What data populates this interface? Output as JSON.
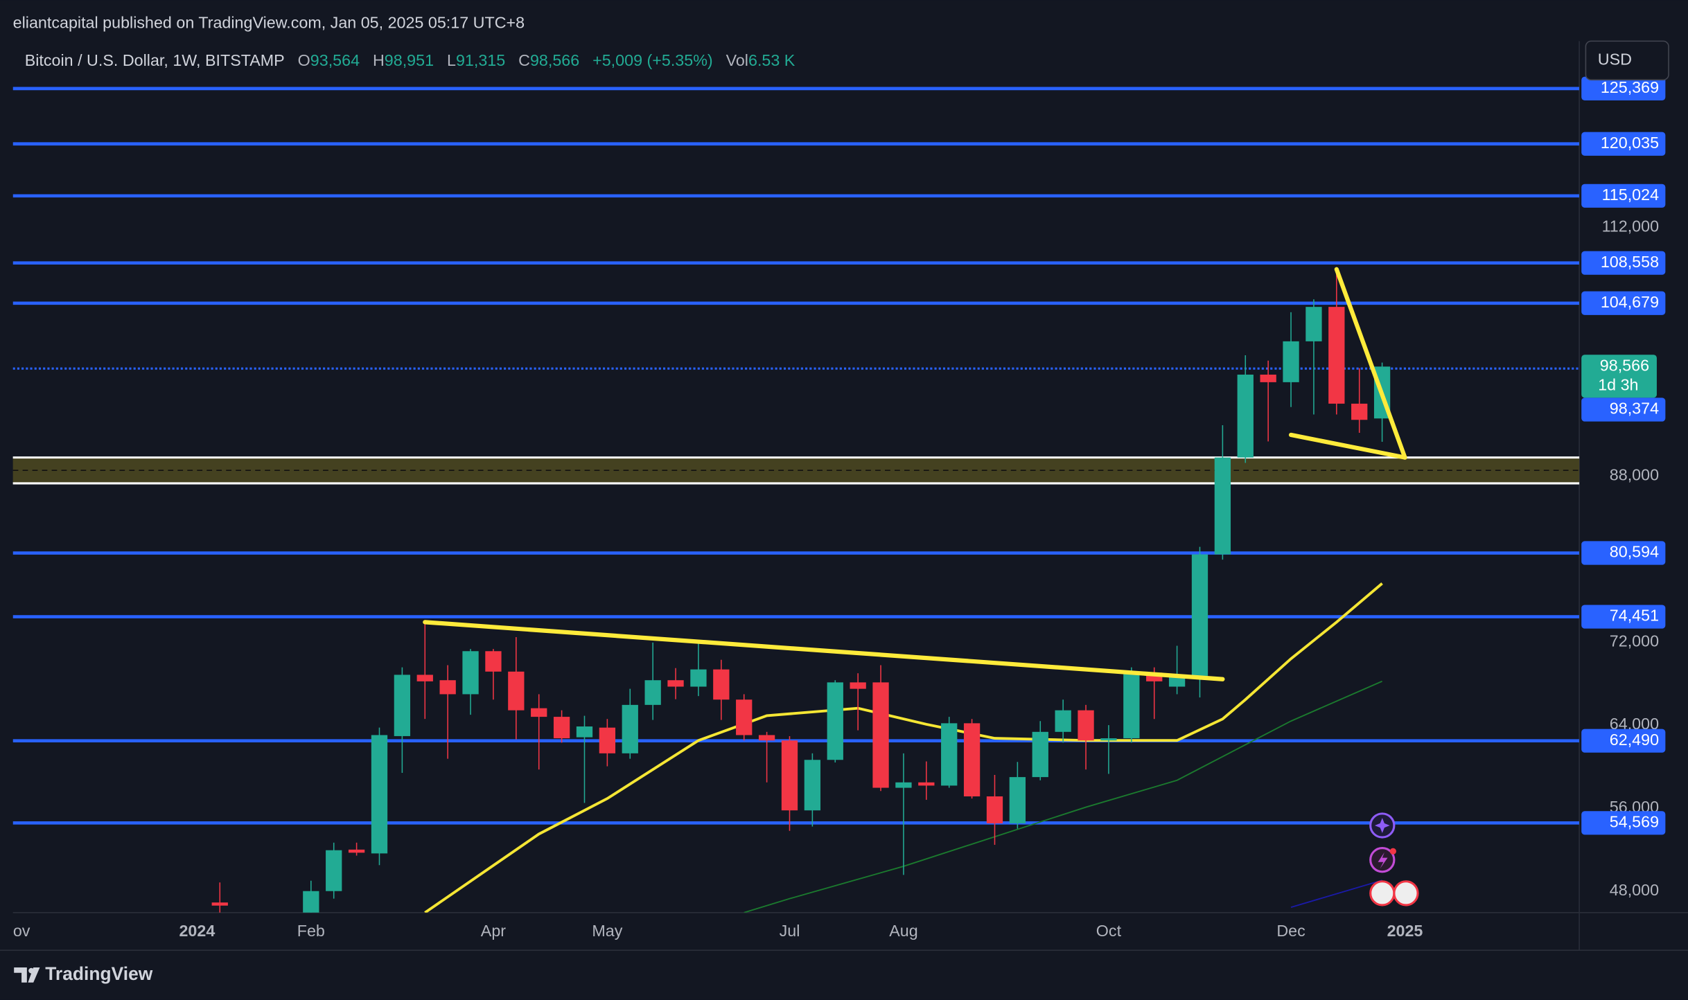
{
  "header": {
    "publisher": "eliantcapital published on TradingView.com, Jan 05, 2025 05:17 UTC+8",
    "symbol": "Bitcoin / U.S. Dollar, 1W, BITSTAMP",
    "legend": [
      [
        "O",
        "93,564"
      ],
      [
        "H",
        "98,951"
      ],
      [
        "L",
        "91,315"
      ],
      [
        "C",
        "98,566"
      ]
    ],
    "change": "+5,009 (+5.35%)",
    "vol_label": "Vol",
    "vol": "6.53 K",
    "currency": "USD",
    "footer": "TradingView"
  },
  "chart_data": {
    "type": "candlestick",
    "up_color": "#22ab94",
    "down_color": "#f23645",
    "x": [
      1,
      5,
      6,
      7,
      8,
      9,
      10,
      11,
      12,
      13,
      14,
      15,
      16,
      17,
      18,
      19,
      20,
      21,
      22,
      23,
      24,
      25,
      26,
      27,
      28,
      29,
      30,
      31,
      32,
      33,
      34,
      35,
      36,
      37,
      38,
      39,
      40,
      41,
      42,
      43,
      44,
      45,
      46,
      47,
      48,
      49,
      50,
      51,
      52
    ],
    "open": [
      46900,
      42600,
      48000,
      52000,
      51630,
      62940,
      68850,
      68330,
      66980,
      71130,
      69160,
      65630,
      64800,
      62830,
      63760,
      61280,
      65950,
      68330,
      67710,
      69370,
      66460,
      63040,
      62520,
      55780,
      60650,
      68120,
      68120,
      57960,
      58480,
      58170,
      64180,
      57130,
      54530,
      58990,
      63350,
      65430,
      62520,
      62730,
      69060,
      67710,
      68750,
      80460,
      89800,
      97790,
      97060,
      101000,
      104320,
      94990,
      93564
    ],
    "high": [
      48830,
      49000,
      52670,
      52670,
      63760,
      69570,
      73930,
      69780,
      71340,
      71340,
      72480,
      66980,
      65430,
      64900,
      64590,
      67500,
      71960,
      69500,
      71960,
      70300,
      66980,
      63350,
      62940,
      61280,
      68330,
      69000,
      69780,
      61280,
      60500,
      64800,
      64590,
      59200,
      60450,
      64390,
      66460,
      65950,
      64000,
      69570,
      69570,
      71650,
      81190,
      92910,
      99660,
      99140,
      103800,
      105050,
      107950,
      98410,
      98951
    ],
    "low": [
      41500,
      42200,
      47270,
      51420,
      50500,
      59400,
      64600,
      60760,
      65000,
      66460,
      62630,
      59720,
      62310,
      56500,
      60030,
      60760,
      64500,
      66500,
      66800,
      64500,
      62520,
      58480,
      53810,
      54220,
      60400,
      63500,
      57650,
      49560,
      56800,
      57960,
      56920,
      52460,
      54020,
      58680,
      62310,
      59720,
      59300,
      62310,
      64590,
      66980,
      66670,
      79950,
      89280,
      91350,
      94670,
      93950,
      93950,
      92180,
      91315
    ],
    "close": [
      46600,
      48000,
      51940,
      51700,
      63040,
      68850,
      68220,
      66980,
      71130,
      69160,
      65430,
      64800,
      62730,
      63870,
      61280,
      65950,
      68330,
      67710,
      69370,
      66460,
      63040,
      62520,
      55780,
      60650,
      68120,
      67500,
      57960,
      58480,
      58170,
      64180,
      57130,
      54530,
      58990,
      63350,
      65430,
      62520,
      62730,
      69060,
      68220,
      68750,
      80460,
      89800,
      97790,
      97060,
      101000,
      104320,
      94990,
      93430,
      98566
    ],
    "series": [
      {
        "color": "#f5e634",
        "x": [
          10,
          15,
          18,
          22,
          25,
          29,
          32,
          35,
          39,
          43,
          45,
          46,
          48,
          50,
          52
        ],
        "values": [
          45926,
          53500,
          56920,
          62520,
          64910,
          65630,
          64080,
          62730,
          62520,
          62520,
          64590,
          66460,
          70400,
          73930,
          77660
        ]
      },
      {
        "color": "#1b7a2e",
        "x": [
          24,
          26,
          31,
          39,
          43,
          48,
          52
        ],
        "values": [
          45926,
          47270,
          50390,
          56090,
          58680,
          64390,
          68230
        ]
      },
      {
        "color": "#1a1aa8",
        "x": [
          48,
          52
        ],
        "values": [
          46440,
          49040
        ]
      }
    ],
    "trendlines": [
      {
        "x": [
          10,
          45
        ],
        "values": [
          73930,
          68430
        ]
      },
      {
        "x": [
          50,
          53
        ],
        "values": [
          107950,
          89800
        ]
      },
      {
        "x": [
          48,
          53
        ],
        "values": [
          91980,
          89800
        ]
      }
    ],
    "trend_color": "#ffeb3b",
    "levels": [
      {
        "value": 125369,
        "label": "125,369"
      },
      {
        "value": 120035,
        "label": "120,035"
      },
      {
        "value": 115024,
        "label": "115,024"
      },
      {
        "value": 108558,
        "label": "108,558"
      },
      {
        "value": 104679,
        "label": "104,679"
      },
      {
        "value": 80594,
        "label": "80,594"
      },
      {
        "value": 74451,
        "label": "74,451"
      },
      {
        "value": 62490,
        "label": "62,490"
      },
      {
        "value": 54569,
        "label": "54,569"
      }
    ],
    "level_color": "#2962ff",
    "alert_line": {
      "value": 98374,
      "label": "98,374"
    },
    "last_price": {
      "value": 98566,
      "label": "98,566",
      "countdown": "1d 3h"
    },
    "zone": {
      "top": 89800,
      "bottom": 87310,
      "mid": 88560
    },
    "xlim": [
      -8.08,
      60.65
    ],
    "xticks": [
      {
        "value": -7.7,
        "label": "ov"
      },
      {
        "value": 0,
        "label": "2024"
      },
      {
        "value": 5,
        "label": "Feb"
      },
      {
        "value": 13,
        "label": "Apr"
      },
      {
        "value": 18,
        "label": "May"
      },
      {
        "value": 26,
        "label": "Jul"
      },
      {
        "value": 31,
        "label": "Aug"
      },
      {
        "value": 40,
        "label": "Oct"
      },
      {
        "value": 48,
        "label": "Dec"
      },
      {
        "value": 53,
        "label": "2025"
      }
    ],
    "ylim": [
      45926,
      129940
    ],
    "yticks": [
      {
        "value": 112000,
        "label": "112,000"
      },
      {
        "value": 88000,
        "label": "88,000"
      },
      {
        "value": 72000,
        "label": "72,000"
      },
      {
        "value": 64000,
        "label": "64,000"
      },
      {
        "value": 56000,
        "label": "56,000"
      },
      {
        "value": 48000,
        "label": "48,000"
      }
    ],
    "grid": true
  }
}
